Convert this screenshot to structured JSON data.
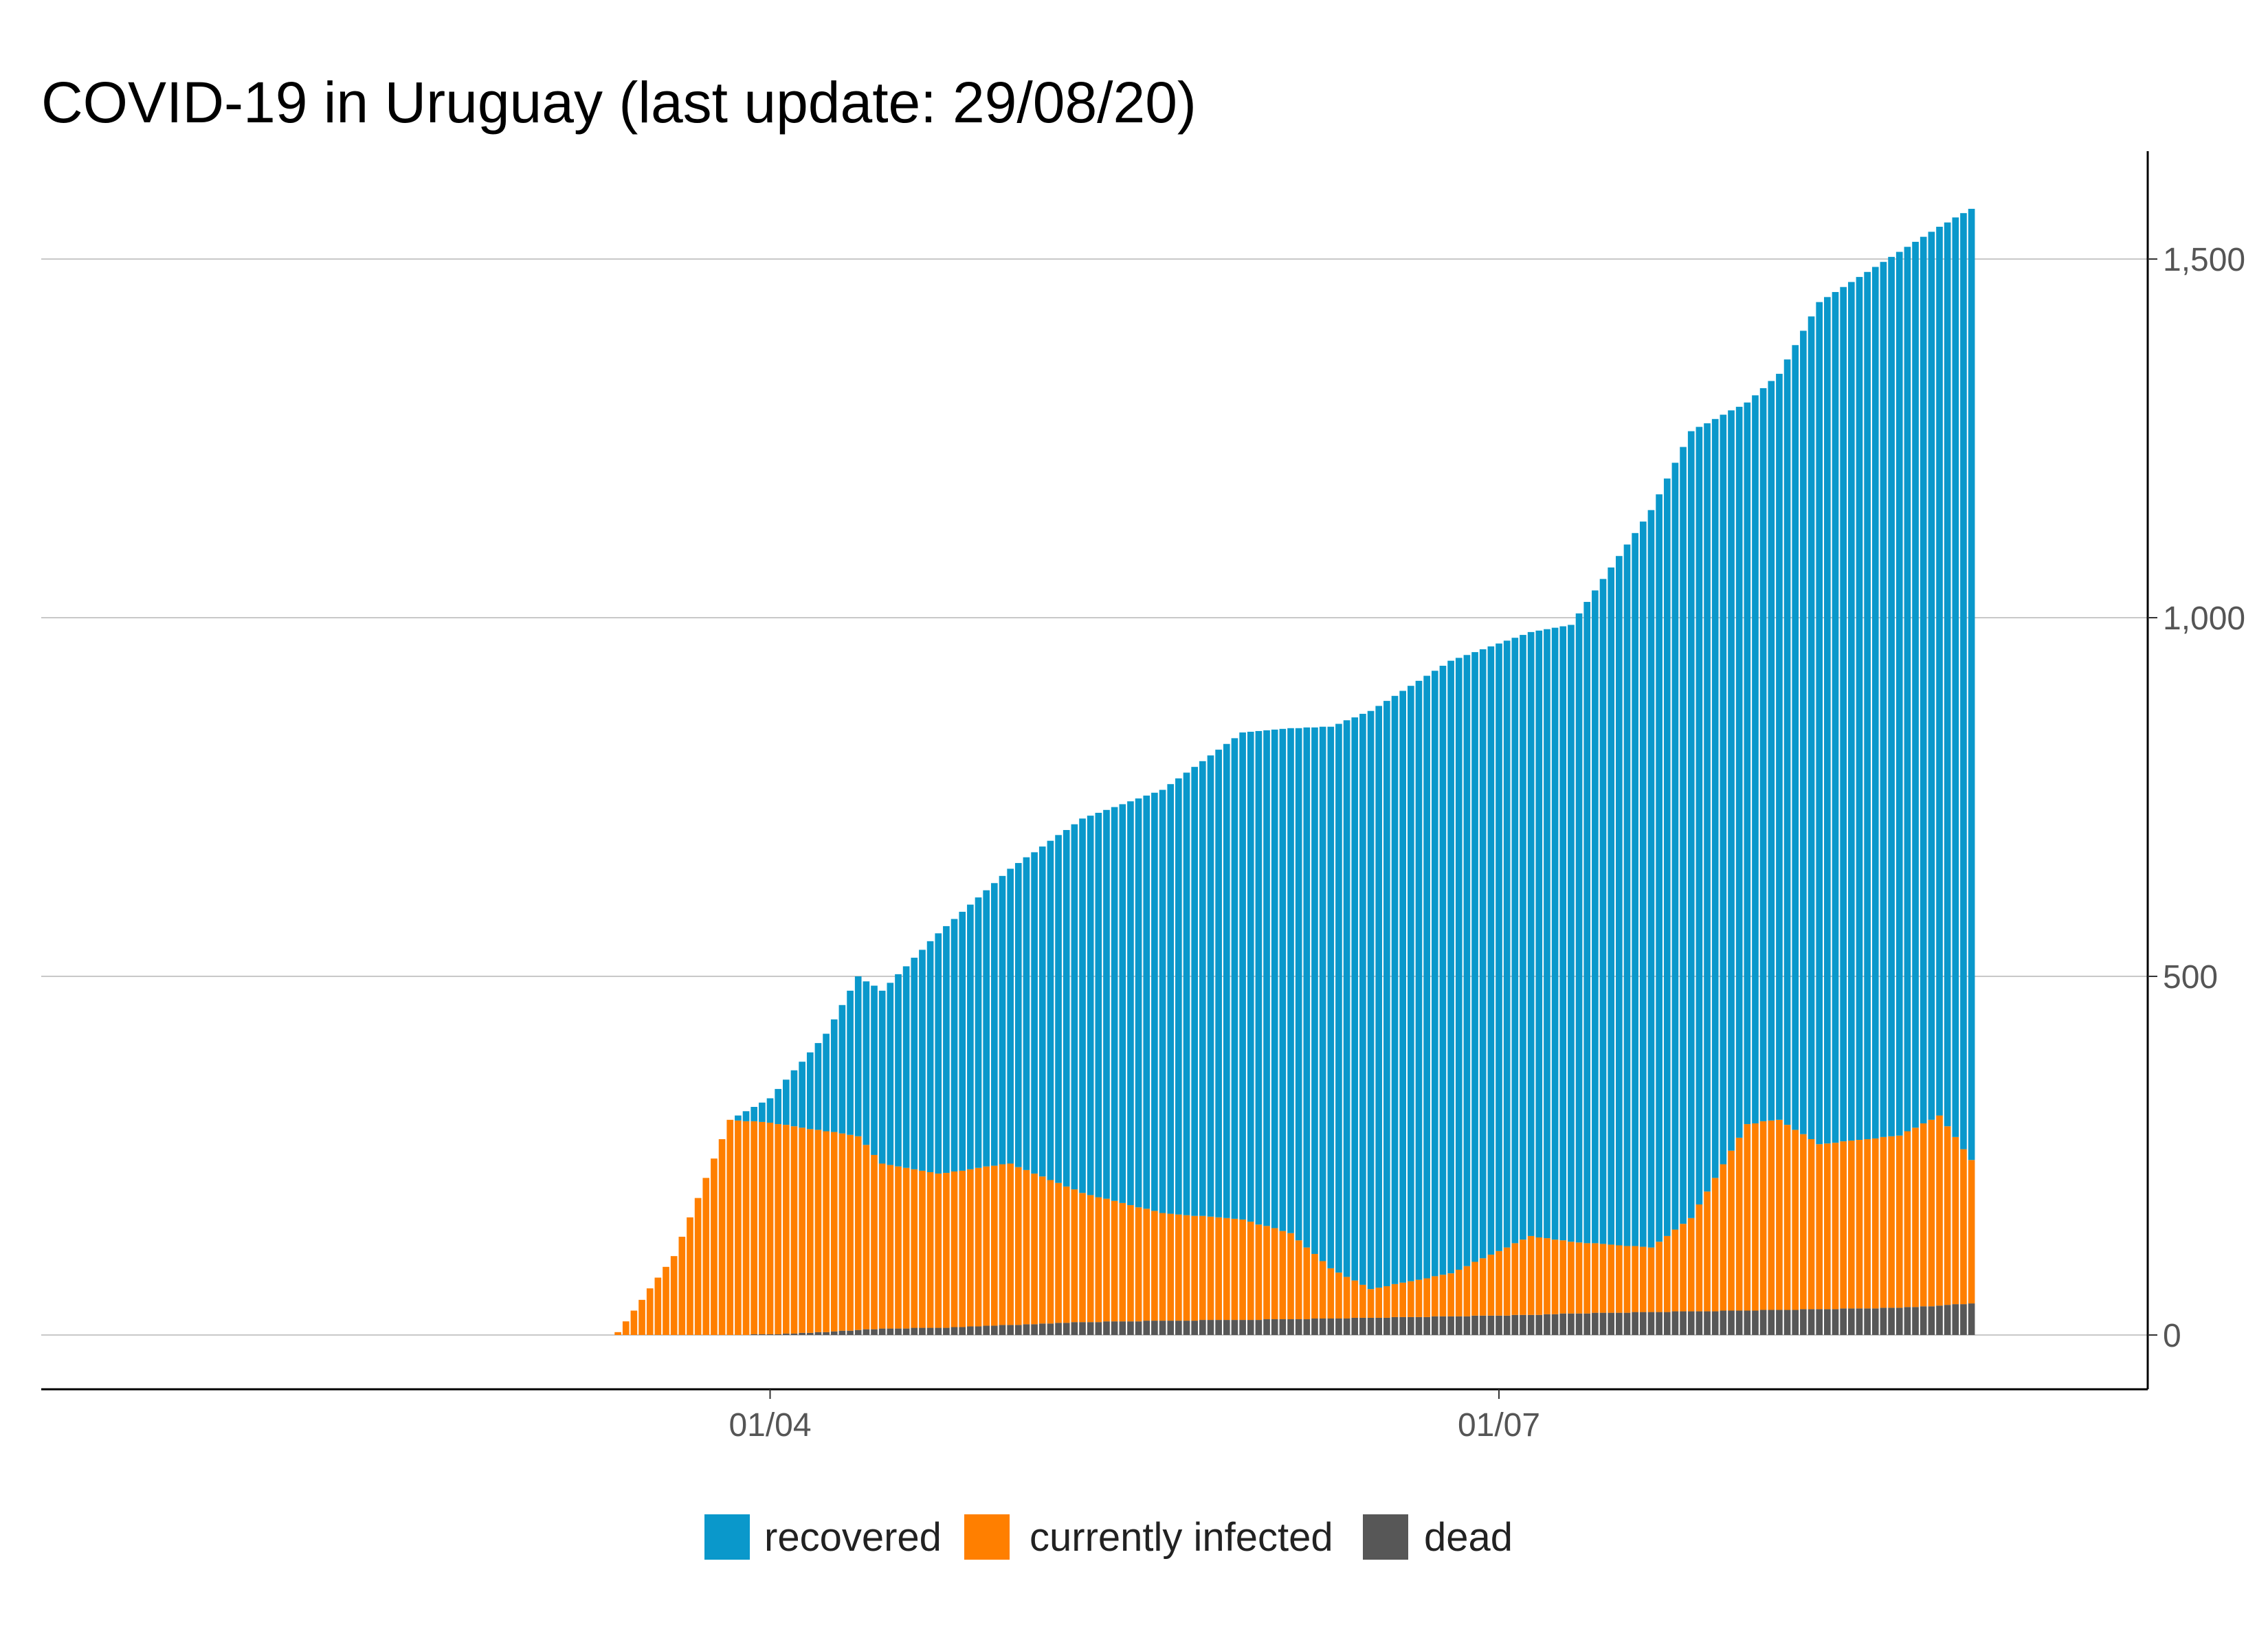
{
  "chart_data": {
    "type": "bar",
    "stacked": true,
    "title": "COVID-19 in Uruguay (last update: 29/08/20)",
    "xlabel": "",
    "ylabel": "",
    "ylim": [
      0,
      1600
    ],
    "y_ticks": [
      {
        "value": 0,
        "label": "0"
      },
      {
        "value": 500,
        "label": "500"
      },
      {
        "value": 1000,
        "label": "1,000"
      },
      {
        "value": 1500,
        "label": "1,500"
      }
    ],
    "x_ticks": [
      {
        "date": "2020-04-01",
        "label": "01/04"
      },
      {
        "date": "2020-07-01",
        "label": "01/07"
      }
    ],
    "y_axis_position": "right",
    "grid": "horizontal",
    "legend_position": "bottom",
    "x_start_date": "2020-01-01",
    "x_end_date": "2020-09-20",
    "date_anchors": [
      "2020-03-13",
      "2020-03-20",
      "2020-03-27",
      "2020-04-01",
      "2020-04-08",
      "2020-04-12",
      "2020-04-15",
      "2020-04-22",
      "2020-05-01",
      "2020-05-10",
      "2020-05-20",
      "2020-05-30",
      "2020-06-05",
      "2020-06-10",
      "2020-06-15",
      "2020-06-25",
      "2020-07-05",
      "2020-07-10",
      "2020-07-20",
      "2020-07-25",
      "2020-08-01",
      "2020-08-05",
      "2020-08-10",
      "2020-08-20",
      "2020-08-25",
      "2020-08-29"
    ],
    "total_anchors": [
      4,
      110,
      300,
      330,
      420,
      500,
      480,
      560,
      650,
      720,
      760,
      840,
      846,
      848,
      870,
      940,
      980,
      990,
      1150,
      1260,
      1300,
      1340,
      1440,
      1510,
      1545,
      1570
    ],
    "infected_anchors": [
      4,
      110,
      300,
      295,
      280,
      270,
      230,
      215,
      225,
      180,
      150,
      140,
      120,
      70,
      40,
      60,
      110,
      100,
      90,
      130,
      260,
      265,
      230,
      240,
      265,
      200
    ],
    "dead_anchors": [
      0,
      0,
      0,
      1,
      4,
      7,
      9,
      10,
      14,
      18,
      20,
      21,
      22,
      23,
      24,
      26,
      28,
      30,
      32,
      33,
      34,
      35,
      36,
      38,
      41,
      44
    ],
    "series": [
      {
        "name": "recovered",
        "color": "#0a98cb"
      },
      {
        "name": "currently infected",
        "color": "#ff7f00"
      },
      {
        "name": "dead",
        "color": "#575757"
      }
    ]
  }
}
